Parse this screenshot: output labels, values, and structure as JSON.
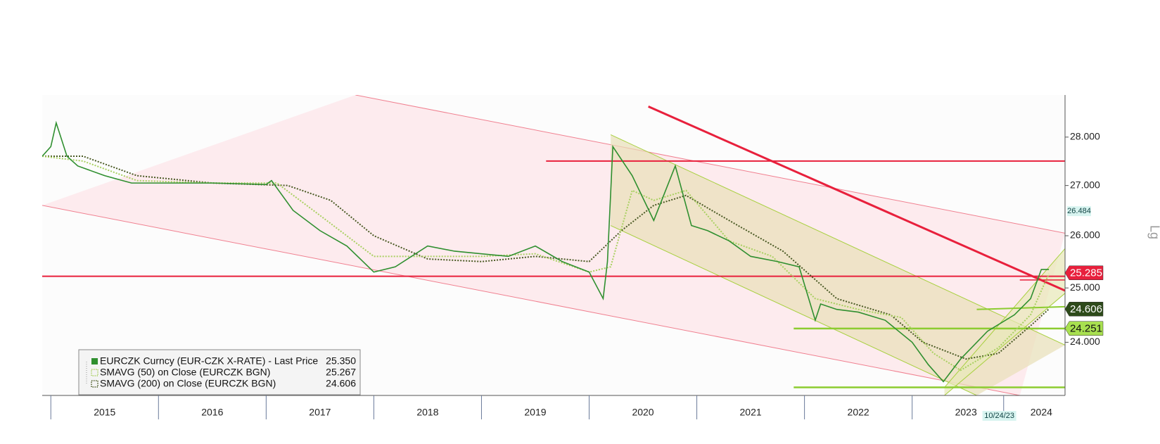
{
  "chart_data": {
    "type": "line",
    "log_scale": true,
    "y_axis_label": "Lg",
    "xlim": [
      2014.92,
      2024.42
    ],
    "xticks": [
      {
        "value": 2015.5,
        "label": "2015"
      },
      {
        "value": 2016.5,
        "label": "2016"
      },
      {
        "value": 2017.5,
        "label": "2017"
      },
      {
        "value": 2018.5,
        "label": "2018"
      },
      {
        "value": 2019.5,
        "label": "2019"
      },
      {
        "value": 2020.5,
        "label": "2020"
      },
      {
        "value": 2021.5,
        "label": "2021"
      },
      {
        "value": 2022.5,
        "label": "2022"
      },
      {
        "value": 2023.5,
        "label": "2023"
      },
      {
        "value": 2024.2,
        "label": "2024"
      }
    ],
    "ylim": [
      23.06,
      28.9
    ],
    "yticks": [
      {
        "value": 24,
        "label": "24.000"
      },
      {
        "value": 25,
        "label": "25.000"
      },
      {
        "value": 26,
        "label": "26.000"
      },
      {
        "value": 27,
        "label": "27.000"
      },
      {
        "value": 28,
        "label": "28.000"
      }
    ],
    "series": [
      {
        "name": "EURCZK Curncy (EUR-CZK X-RATE) - Last Price",
        "last_value_label": "25.350",
        "color": "#2f8f2f",
        "style": "solid",
        "x": [
          2014.92,
          2015.0,
          2015.05,
          2015.15,
          2015.25,
          2015.5,
          2015.75,
          2016.0,
          2016.5,
          2017.0,
          2017.05,
          2017.25,
          2017.5,
          2017.75,
          2018.0,
          2018.2,
          2018.5,
          2018.75,
          2019.0,
          2019.25,
          2019.5,
          2019.75,
          2020.0,
          2020.13,
          2020.17,
          2020.22,
          2020.4,
          2020.6,
          2020.8,
          2020.95,
          2021.1,
          2021.3,
          2021.5,
          2021.75,
          2021.95,
          2022.1,
          2022.15,
          2022.3,
          2022.5,
          2022.75,
          2023.0,
          2023.15,
          2023.29,
          2023.45,
          2023.7,
          2023.95,
          2024.1,
          2024.2,
          2024.27
        ],
        "values": [
          27.6,
          27.8,
          28.3,
          27.6,
          27.4,
          27.2,
          27.05,
          27.05,
          27.05,
          27.02,
          27.1,
          26.5,
          26.1,
          25.8,
          25.3,
          25.4,
          25.8,
          25.7,
          25.65,
          25.6,
          25.8,
          25.5,
          25.3,
          24.8,
          25.5,
          27.8,
          27.2,
          26.3,
          27.4,
          26.2,
          26.1,
          25.9,
          25.6,
          25.5,
          25.4,
          24.4,
          24.7,
          24.6,
          24.55,
          24.4,
          24.0,
          23.6,
          23.3,
          23.7,
          24.2,
          24.5,
          24.8,
          25.35,
          25.35
        ]
      },
      {
        "name": "SMAVG (50)  on Close (EURCZK BGN)",
        "last_value_label": "25.267",
        "color": "#a8d060",
        "style": "dotted",
        "x": [
          2014.92,
          2015.3,
          2015.8,
          2016.5,
          2017.1,
          2017.5,
          2018.0,
          2018.5,
          2019.0,
          2019.5,
          2020.0,
          2020.2,
          2020.4,
          2020.6,
          2020.9,
          2021.3,
          2021.7,
          2022.1,
          2022.5,
          2022.9,
          2023.2,
          2023.45,
          2023.8,
          2024.1,
          2024.27
        ],
        "values": [
          27.6,
          27.5,
          27.1,
          27.05,
          27.05,
          26.4,
          25.6,
          25.6,
          25.6,
          25.65,
          25.3,
          25.4,
          26.9,
          26.7,
          26.9,
          25.9,
          25.6,
          24.8,
          24.6,
          24.45,
          23.8,
          23.5,
          23.9,
          24.5,
          25.267
        ]
      },
      {
        "name": "SMAVG (200)  on Close (EURCZK BGN)",
        "last_value_label": "24.606",
        "color": "#4a5a24",
        "style": "dotted",
        "x": [
          2014.92,
          2015.3,
          2015.8,
          2016.5,
          2017.2,
          2017.6,
          2018.0,
          2018.5,
          2019.0,
          2019.5,
          2020.0,
          2020.3,
          2020.6,
          2020.9,
          2021.3,
          2021.8,
          2022.3,
          2022.8,
          2023.1,
          2023.5,
          2023.8,
          2024.1,
          2024.27
        ],
        "values": [
          27.6,
          27.6,
          27.2,
          27.05,
          27.0,
          26.7,
          26.0,
          25.55,
          25.5,
          25.6,
          25.5,
          26.1,
          26.6,
          26.8,
          26.3,
          25.7,
          24.8,
          24.5,
          24.0,
          23.7,
          23.8,
          24.3,
          24.606
        ]
      }
    ],
    "channels": [
      {
        "color": "#fde4e8",
        "edge": "#f08090",
        "upper": {
          "x": [
            2017.83,
            2024.42
          ],
          "y": [
            28.9,
            26.05
          ]
        },
        "lower": {
          "x": [
            2014.92,
            2024.0
          ],
          "y": [
            26.6,
            23.06
          ]
        }
      },
      {
        "color": "#e8e0b8",
        "edge": "#a8d040",
        "upper": {
          "x": [
            2020.2,
            2024.42
          ],
          "y": [
            28.05,
            23.95
          ]
        },
        "lower": {
          "x": [
            2020.2,
            2023.6
          ],
          "y": [
            26.2,
            23.06
          ]
        }
      },
      {
        "color": "#e8e8b8",
        "edge": "#a8d040",
        "upper": {
          "x": [
            2023.3,
            2024.42
          ],
          "y": [
            23.2,
            25.75
          ]
        },
        "lower": {
          "x": [
            2023.3,
            2024.42
          ],
          "y": [
            23.06,
            24.9
          ]
        }
      }
    ],
    "lines": [
      {
        "color": "#e8203c",
        "width": 2,
        "x": [
          2019.6,
          2024.42
        ],
        "y": [
          27.5,
          27.5
        ]
      },
      {
        "color": "#e8203c",
        "width": 2,
        "x": [
          2014.92,
          2024.42
        ],
        "y": [
          25.22,
          25.22
        ]
      },
      {
        "color": "#e8203c",
        "width": 3,
        "x": [
          2020.55,
          2024.42
        ],
        "y": [
          28.65,
          24.95
        ]
      },
      {
        "color": "#e8203c",
        "width": 1.5,
        "x": [
          2024.0,
          2024.42
        ],
        "y": [
          25.15,
          25.15
        ]
      },
      {
        "color": "#8ccc30",
        "width": 2.5,
        "x": [
          2021.9,
          2024.42
        ],
        "y": [
          24.25,
          24.25
        ]
      },
      {
        "color": "#8ccc30",
        "width": 2.5,
        "x": [
          2021.9,
          2024.42
        ],
        "y": [
          23.2,
          23.2
        ]
      },
      {
        "color": "#8ccc30",
        "width": 2,
        "x": [
          2023.6,
          2024.42
        ],
        "y": [
          24.6,
          24.65
        ]
      }
    ],
    "price_tags": [
      {
        "value": 26.484,
        "color": "#d8f4f0",
        "text_color": "#114444",
        "small": true
      },
      {
        "value": 25.285,
        "color": "#e8203c",
        "text_color": "#ffffff"
      },
      {
        "value": 24.606,
        "color": "#2d4a1a",
        "text_color": "#ffffff"
      },
      {
        "value": 24.251,
        "color": "#a8e050",
        "text_color": "#111111"
      }
    ],
    "annotations": [
      {
        "text": "10/24/23",
        "x": 2023.81
      }
    ]
  }
}
